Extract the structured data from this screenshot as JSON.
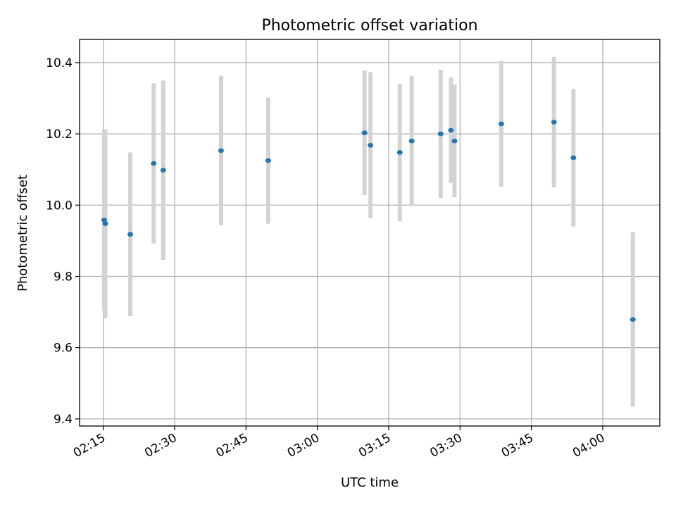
{
  "chart_data": {
    "type": "scatter",
    "title": "Photometric offset variation",
    "xlabel": "UTC time",
    "ylabel": "Photometric offset",
    "x_unit": "UTC time (HH:MM)",
    "xlim": [
      "02:10",
      "04:12"
    ],
    "ylim": [
      9.38,
      10.465
    ],
    "x_ticks": [
      "02:15",
      "02:30",
      "02:45",
      "03:00",
      "03:15",
      "03:30",
      "03:45",
      "04:00"
    ],
    "y_ticks": [
      "9.4",
      "9.6",
      "9.8",
      "10.0",
      "10.2",
      "10.4"
    ],
    "grid": true,
    "legend": "none",
    "colors": {
      "point": "#1f77b4",
      "errorbar": "#d3d3d3",
      "grid": "#b0b0b0"
    },
    "points": [
      {
        "x": "02:15:10",
        "y": 9.958,
        "err": 0.255
      },
      {
        "x": "02:15:25",
        "y": 9.948,
        "err": 0.265
      },
      {
        "x": "02:20:40",
        "y": 9.918,
        "err": 0.23
      },
      {
        "x": "02:25:35",
        "y": 10.117,
        "err": 0.225
      },
      {
        "x": "02:27:35",
        "y": 10.098,
        "err": 0.252
      },
      {
        "x": "02:39:45",
        "y": 10.153,
        "err": 0.21
      },
      {
        "x": "02:49:40",
        "y": 10.125,
        "err": 0.177
      },
      {
        "x": "03:09:55",
        "y": 10.203,
        "err": 0.175
      },
      {
        "x": "03:11:10",
        "y": 10.168,
        "err": 0.205
      },
      {
        "x": "03:17:20",
        "y": 10.148,
        "err": 0.193
      },
      {
        "x": "03:19:50",
        "y": 10.18,
        "err": 0.183
      },
      {
        "x": "03:25:55",
        "y": 10.2,
        "err": 0.18
      },
      {
        "x": "03:28:05",
        "y": 10.21,
        "err": 0.148
      },
      {
        "x": "03:28:50",
        "y": 10.18,
        "err": 0.158
      },
      {
        "x": "03:38:40",
        "y": 10.228,
        "err": 0.177
      },
      {
        "x": "03:49:45",
        "y": 10.233,
        "err": 0.183
      },
      {
        "x": "03:53:50",
        "y": 10.133,
        "err": 0.193
      },
      {
        "x": "04:06:20",
        "y": 9.679,
        "err": 0.245
      }
    ]
  }
}
